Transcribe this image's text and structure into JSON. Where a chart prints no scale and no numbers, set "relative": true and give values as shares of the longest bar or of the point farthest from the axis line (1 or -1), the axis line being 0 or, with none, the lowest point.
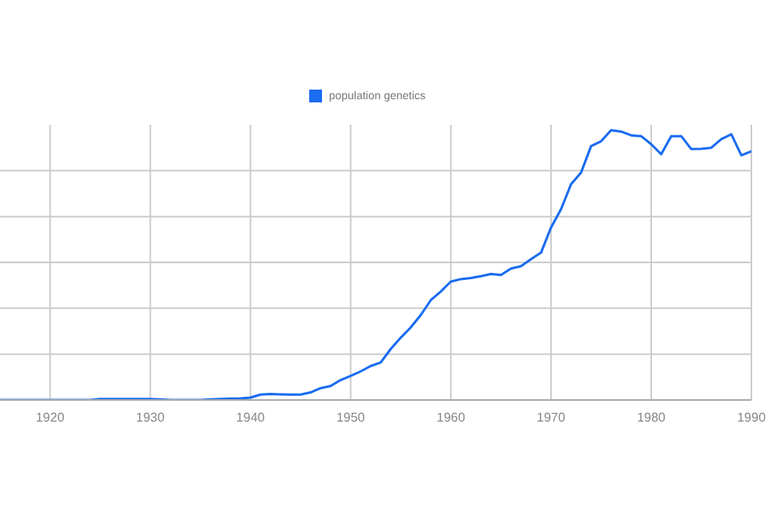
{
  "chart_data": {
    "type": "line",
    "relative": true,
    "x": [
      1915,
      1916,
      1917,
      1918,
      1919,
      1920,
      1921,
      1922,
      1923,
      1924,
      1925,
      1926,
      1927,
      1928,
      1929,
      1930,
      1931,
      1932,
      1933,
      1934,
      1935,
      1936,
      1937,
      1938,
      1939,
      1940,
      1941,
      1942,
      1943,
      1944,
      1945,
      1946,
      1947,
      1948,
      1949,
      1950,
      1951,
      1952,
      1953,
      1954,
      1955,
      1956,
      1957,
      1958,
      1959,
      1960,
      1961,
      1962,
      1963,
      1964,
      1965,
      1966,
      1967,
      1968,
      1969,
      1970,
      1971,
      1972,
      1973,
      1974,
      1975,
      1976,
      1977,
      1978,
      1979,
      1980,
      1981,
      1982,
      1983,
      1984,
      1985,
      1986,
      1987,
      1988,
      1989,
      1990
    ],
    "series": [
      {
        "name": "population genetics",
        "color": "#1a6cf0",
        "values": [
          0,
          0,
          0,
          0,
          0,
          0,
          0,
          0,
          0,
          0,
          0.004,
          0.004,
          0.004,
          0.004,
          0.004,
          0.004,
          0.002,
          0,
          0,
          0,
          0,
          0.002,
          0.004,
          0.005,
          0.006,
          0.009,
          0.02,
          0.022,
          0.021,
          0.02,
          0.02,
          0.028,
          0.044,
          0.052,
          0.074,
          0.089,
          0.106,
          0.126,
          0.139,
          0.189,
          0.231,
          0.269,
          0.315,
          0.37,
          0.402,
          0.439,
          0.448,
          0.452,
          0.459,
          0.467,
          0.463,
          0.487,
          0.496,
          0.522,
          0.546,
          0.639,
          0.707,
          0.8,
          0.843,
          0.941,
          0.959,
          1,
          0.995,
          0.981,
          0.978,
          0.948,
          0.911,
          0.978,
          0.978,
          0.93,
          0.931,
          0.935,
          0.967,
          0.985,
          0.907,
          0.922
        ]
      }
    ],
    "xlim": [
      1915,
      1990
    ],
    "xticks": [
      1920,
      1930,
      1940,
      1950,
      1960,
      1970,
      1980,
      1990
    ],
    "grid": true,
    "legend": "top",
    "marker": "none",
    "line_style": "solid"
  }
}
